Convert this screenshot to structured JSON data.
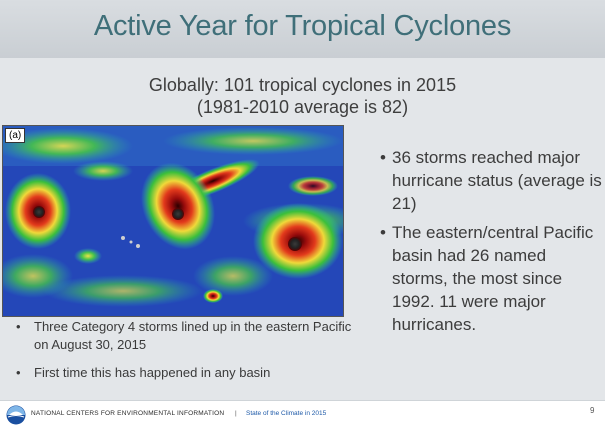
{
  "slide": {
    "title": "Active Year for Tropical Cyclones",
    "subtitle_line1": "Globally: 101 tropical cyclones in 2015",
    "subtitle_line2": "(1981-2010 average is 82)"
  },
  "image": {
    "label": "(a)"
  },
  "left_bullets": [
    "Three Category 4 storms lined up in the eastern Pacific on August 30, 2015",
    "First time this has happened in any basin"
  ],
  "right_bullets": [
    "36 storms reached major hurricane status (average is 21)",
    "The eastern/central Pacific basin had 26 named storms, the most since 1992. 11 were major hurricanes."
  ],
  "footer": {
    "org": "NATIONAL CENTERS FOR ENVIRONMENTAL INFORMATION",
    "separator": "|",
    "report": "State of the Climate in 2015",
    "page": "9"
  },
  "colors": {
    "title": "#3f6f79",
    "ocean": "#2447b8",
    "link": "#1e5aa8"
  },
  "icons": {
    "bullet": "•",
    "logo": "noaa-logo-icon"
  }
}
